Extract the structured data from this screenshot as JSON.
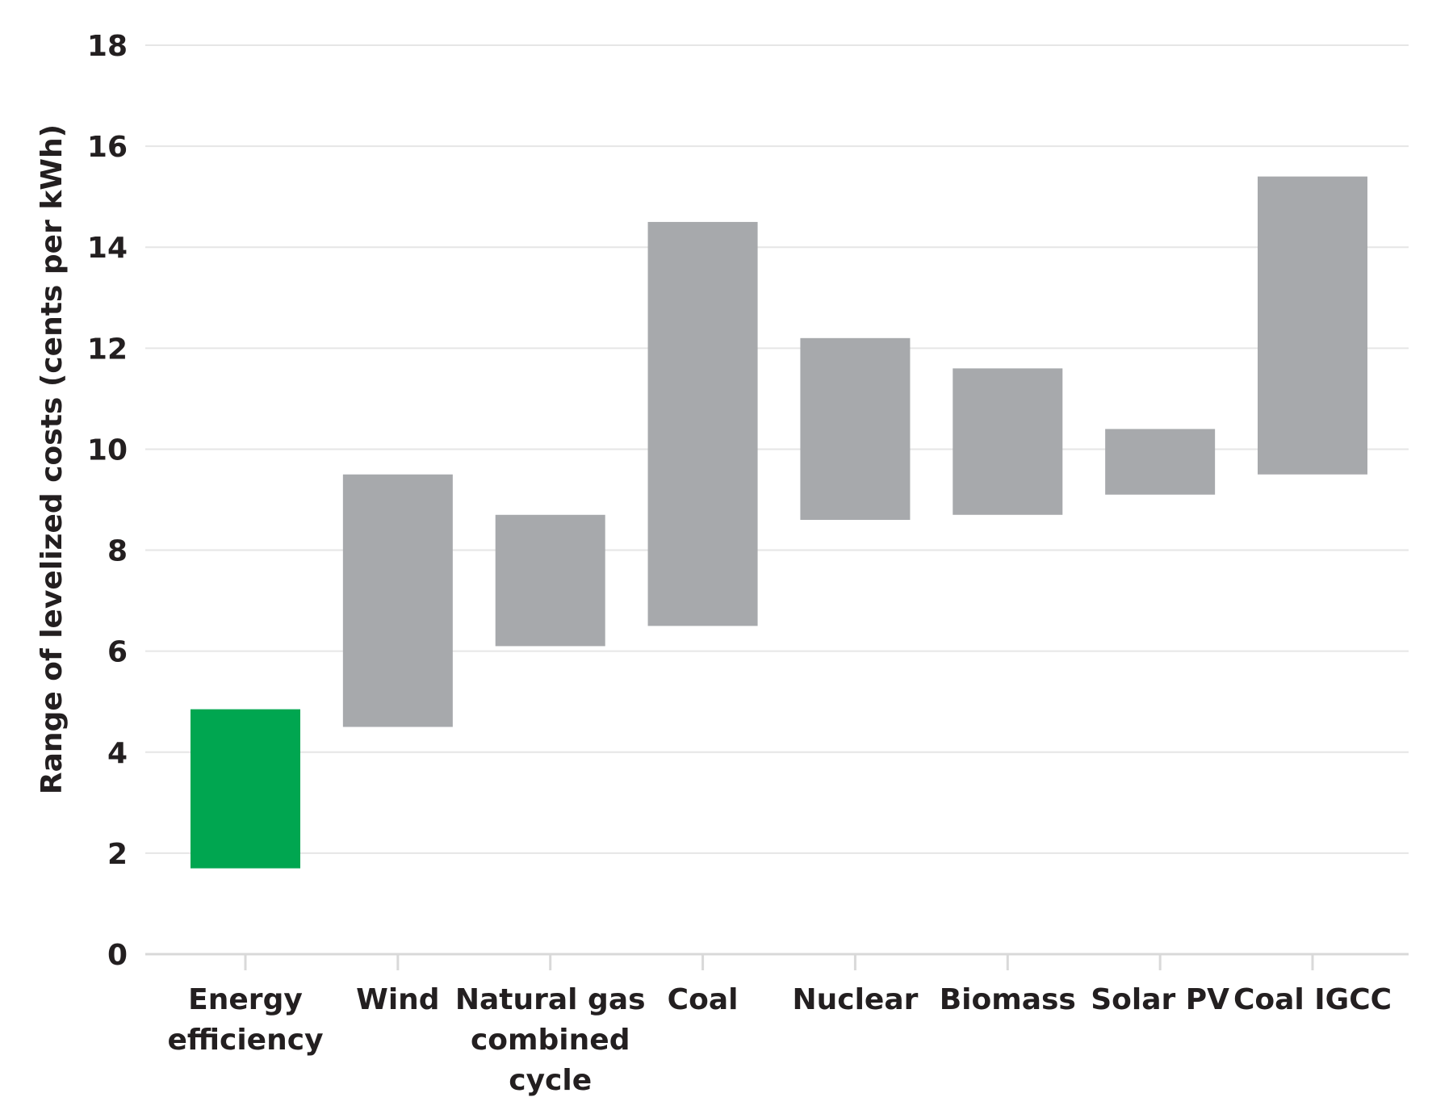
{
  "chart_data": {
    "type": "bar",
    "subtype": "floating-range",
    "title": "",
    "xlabel": "",
    "ylabel": "Range of levelized costs (cents per kWh)",
    "ylim": [
      0,
      18
    ],
    "yticks": [
      0,
      2,
      4,
      6,
      8,
      10,
      12,
      14,
      16,
      18
    ],
    "grid": true,
    "legend": "none",
    "categories": [
      [
        "Energy",
        "efficiency"
      ],
      [
        "Wind"
      ],
      [
        "Natural gas",
        "combined",
        "cycle"
      ],
      [
        "Coal"
      ],
      [
        "Nuclear"
      ],
      [
        "Biomass"
      ],
      [
        "Solar PV"
      ],
      [
        "Coal IGCC"
      ]
    ],
    "series": [
      {
        "ranges": [
          [
            1.7,
            4.85
          ],
          [
            4.5,
            9.5
          ],
          [
            6.1,
            8.7
          ],
          [
            6.5,
            14.5
          ],
          [
            8.6,
            12.2
          ],
          [
            8.7,
            11.6
          ],
          [
            9.1,
            10.4
          ],
          [
            9.5,
            15.4
          ]
        ],
        "colors": [
          "#00a650",
          "#a7a9ac",
          "#a7a9ac",
          "#a7a9ac",
          "#a7a9ac",
          "#a7a9ac",
          "#a7a9ac",
          "#a7a9ac"
        ]
      }
    ]
  }
}
